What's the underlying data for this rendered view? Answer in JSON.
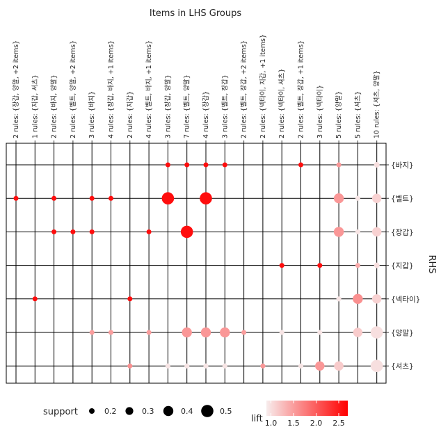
{
  "chart_data": {
    "type": "scatter",
    "title": "Items in LHS Groups",
    "ylabel": "RHS",
    "lhs_groups": [
      "2 rules: {장갑, 양말, +2 items}",
      "1 rules: {지갑, 셔츠}",
      "2 rules: {바지, 양말}",
      "2 rules: {벨트, 양말, +2 items}",
      "3 rules: {바지}",
      "4 rules: {장갑, 바지, +1 items}",
      "2 rules: {지갑}",
      "4 rules: {벨트, 바지, +1 items}",
      "3 rules: {장갑, 양말}",
      "7 rules: {벨트, 양말}",
      "4 rules: {장갑}",
      "3 rules: {벨트, 장갑}",
      "2 rules: {벨트, 장갑, +2 items}",
      "2 rules: {넥타이, 지갑, +1 items}",
      "2 rules: {넥타이, 셔츠}",
      "2 rules: {벨트, 장갑, +1 items}",
      "3 rules: {넥타이}",
      "5 rules: {양말}",
      "5 rules: {셔츠}",
      "10 rules: {셔츠, 양말}"
    ],
    "rhs_items": [
      "{바지}",
      "{벨트}",
      "{장갑}",
      "{지갑}",
      "{넥타이}",
      "{양말}",
      "{셔츠}"
    ],
    "points": [
      {
        "lhs": 0,
        "rhs": 1,
        "support": 0.17,
        "lift": 2.6
      },
      {
        "lhs": 1,
        "rhs": 4,
        "support": 0.17,
        "lift": 2.6
      },
      {
        "lhs": 2,
        "rhs": 1,
        "support": 0.17,
        "lift": 2.6
      },
      {
        "lhs": 2,
        "rhs": 2,
        "support": 0.17,
        "lift": 2.6
      },
      {
        "lhs": 3,
        "rhs": 2,
        "support": 0.17,
        "lift": 2.6
      },
      {
        "lhs": 4,
        "rhs": 1,
        "support": 0.17,
        "lift": 2.6
      },
      {
        "lhs": 4,
        "rhs": 2,
        "support": 0.17,
        "lift": 2.6
      },
      {
        "lhs": 4,
        "rhs": 5,
        "support": 0.17,
        "lift": 1.5
      },
      {
        "lhs": 5,
        "rhs": 1,
        "support": 0.17,
        "lift": 2.6
      },
      {
        "lhs": 5,
        "rhs": 5,
        "support": 0.17,
        "lift": 1.5
      },
      {
        "lhs": 6,
        "rhs": 4,
        "support": 0.17,
        "lift": 2.6
      },
      {
        "lhs": 6,
        "rhs": 6,
        "support": 0.17,
        "lift": 1.6
      },
      {
        "lhs": 7,
        "rhs": 2,
        "support": 0.17,
        "lift": 2.6
      },
      {
        "lhs": 7,
        "rhs": 5,
        "support": 0.17,
        "lift": 1.5
      },
      {
        "lhs": 8,
        "rhs": 0,
        "support": 0.17,
        "lift": 2.6
      },
      {
        "lhs": 8,
        "rhs": 1,
        "support": 0.5,
        "lift": 2.6
      },
      {
        "lhs": 8,
        "rhs": 6,
        "support": 0.17,
        "lift": 0.95
      },
      {
        "lhs": 9,
        "rhs": 0,
        "support": 0.17,
        "lift": 2.6
      },
      {
        "lhs": 9,
        "rhs": 2,
        "support": 0.5,
        "lift": 2.6
      },
      {
        "lhs": 9,
        "rhs": 5,
        "support": 0.4,
        "lift": 1.55
      },
      {
        "lhs": 9,
        "rhs": 6,
        "support": 0.17,
        "lift": 0.95
      },
      {
        "lhs": 10,
        "rhs": 0,
        "support": 0.17,
        "lift": 2.6
      },
      {
        "lhs": 10,
        "rhs": 1,
        "support": 0.5,
        "lift": 2.6
      },
      {
        "lhs": 10,
        "rhs": 5,
        "support": 0.4,
        "lift": 1.55
      },
      {
        "lhs": 10,
        "rhs": 6,
        "support": 0.17,
        "lift": 0.95
      },
      {
        "lhs": 11,
        "rhs": 0,
        "support": 0.17,
        "lift": 2.6
      },
      {
        "lhs": 11,
        "rhs": 5,
        "support": 0.4,
        "lift": 1.55
      },
      {
        "lhs": 11,
        "rhs": 6,
        "support": 0.17,
        "lift": 0.95
      },
      {
        "lhs": 12,
        "rhs": 5,
        "support": 0.17,
        "lift": 1.5
      },
      {
        "lhs": 13,
        "rhs": 6,
        "support": 0.17,
        "lift": 1.55
      },
      {
        "lhs": 14,
        "rhs": 3,
        "support": 0.17,
        "lift": 2.6
      },
      {
        "lhs": 14,
        "rhs": 5,
        "support": 0.17,
        "lift": 0.95
      },
      {
        "lhs": 15,
        "rhs": 0,
        "support": 0.17,
        "lift": 2.6
      },
      {
        "lhs": 15,
        "rhs": 6,
        "support": 0.17,
        "lift": 0.95
      },
      {
        "lhs": 16,
        "rhs": 3,
        "support": 0.17,
        "lift": 2.6
      },
      {
        "lhs": 16,
        "rhs": 5,
        "support": 0.17,
        "lift": 0.95
      },
      {
        "lhs": 16,
        "rhs": 6,
        "support": 0.37,
        "lift": 1.55
      },
      {
        "lhs": 17,
        "rhs": 0,
        "support": 0.17,
        "lift": 1.55
      },
      {
        "lhs": 17,
        "rhs": 1,
        "support": 0.4,
        "lift": 1.55
      },
      {
        "lhs": 17,
        "rhs": 2,
        "support": 0.4,
        "lift": 1.55
      },
      {
        "lhs": 17,
        "rhs": 4,
        "support": 0.17,
        "lift": 0.95
      },
      {
        "lhs": 17,
        "rhs": 6,
        "support": 0.37,
        "lift": 1.15
      },
      {
        "lhs": 18,
        "rhs": 1,
        "support": 0.17,
        "lift": 0.95
      },
      {
        "lhs": 18,
        "rhs": 2,
        "support": 0.17,
        "lift": 0.95
      },
      {
        "lhs": 18,
        "rhs": 3,
        "support": 0.17,
        "lift": 1.4
      },
      {
        "lhs": 18,
        "rhs": 4,
        "support": 0.4,
        "lift": 1.6
      },
      {
        "lhs": 18,
        "rhs": 5,
        "support": 0.37,
        "lift": 1.15
      },
      {
        "lhs": 19,
        "rhs": 0,
        "support": 0.2,
        "lift": 1.0
      },
      {
        "lhs": 19,
        "rhs": 1,
        "support": 0.37,
        "lift": 1.1
      },
      {
        "lhs": 19,
        "rhs": 2,
        "support": 0.37,
        "lift": 1.1
      },
      {
        "lhs": 19,
        "rhs": 3,
        "support": 0.2,
        "lift": 1.0
      },
      {
        "lhs": 19,
        "rhs": 4,
        "support": 0.37,
        "lift": 1.1
      },
      {
        "lhs": 19,
        "rhs": 5,
        "support": 0.5,
        "lift": 1.0
      },
      {
        "lhs": 19,
        "rhs": 6,
        "support": 0.5,
        "lift": 1.0
      }
    ],
    "legend_support": {
      "title": "support",
      "values": [
        0.2,
        0.3,
        0.4,
        0.5
      ]
    },
    "legend_lift": {
      "title": "lift",
      "ticks": [
        1.0,
        1.5,
        2.0,
        2.5
      ],
      "range": [
        0.9,
        2.7
      ],
      "color_low": "#f7ecec",
      "color_high": "#ff0000"
    }
  }
}
